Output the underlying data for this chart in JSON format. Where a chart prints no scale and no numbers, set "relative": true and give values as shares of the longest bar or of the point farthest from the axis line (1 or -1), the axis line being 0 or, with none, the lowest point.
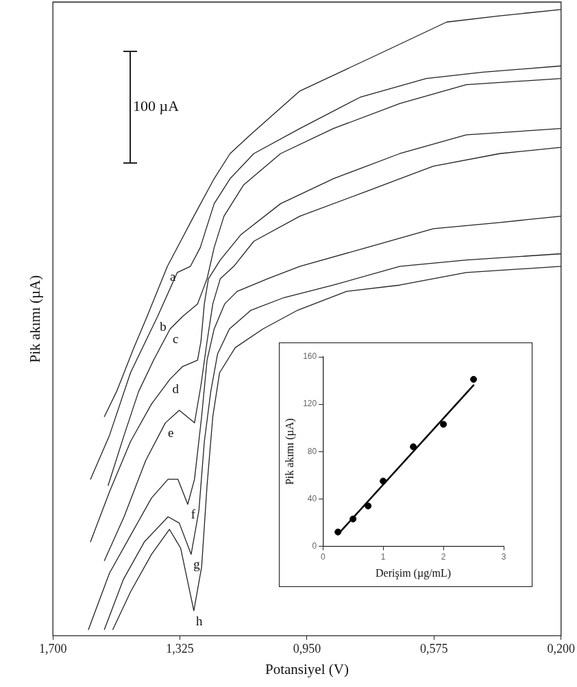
{
  "chart_data": [
    {
      "type": "line",
      "xlabel": "Potansiyel (V)",
      "ylabel": "Pik akımı (µA)",
      "relative": true,
      "tick_labels": "x",
      "xlim": [
        1.7,
        0.2
      ],
      "xticks": [
        {
          "value": 1.7,
          "label": "1,700"
        },
        {
          "value": 1.325,
          "label": "1,325"
        },
        {
          "value": 0.95,
          "label": "0,950"
        },
        {
          "value": 0.575,
          "label": "0,575"
        },
        {
          "value": 0.2,
          "label": "0,200"
        }
      ],
      "series": [
        {
          "name": "a",
          "color": "#222222",
          "x": [
            1.548,
            1.512,
            1.461,
            1.422,
            1.362,
            1.323,
            1.284,
            1.224,
            1.177,
            1.117,
            0.971,
            0.734,
            0.538,
            0.381,
            0.2
          ],
          "values": [
            0.35,
            0.39,
            0.46,
            0.51,
            0.59,
            0.63,
            0.67,
            0.73,
            0.77,
            0.8,
            0.87,
            0.93,
            0.98,
            0.99,
            1
          ]
        },
        {
          "name": "b",
          "color": "#222222",
          "x": [
            1.589,
            1.533,
            1.471,
            1.391,
            1.333,
            1.294,
            1.265,
            1.224,
            1.177,
            1.107,
            0.971,
            0.793,
            0.598,
            0.431,
            0.2
          ],
          "values": [
            0.25,
            0.32,
            0.42,
            0.51,
            0.58,
            0.59,
            0.62,
            0.69,
            0.73,
            0.77,
            0.81,
            0.86,
            0.89,
            0.9,
            0.91
          ]
        },
        {
          "name": "c",
          "color": "#222222",
          "x": [
            1.537,
            1.49,
            1.447,
            1.403,
            1.354,
            1.317,
            1.273,
            1.259,
            1.245,
            1.224,
            1.195,
            1.137,
            1.028,
            0.872,
            0.676,
            0.48,
            0.2
          ],
          "values": [
            0.24,
            0.32,
            0.39,
            0.44,
            0.49,
            0.51,
            0.53,
            0.55,
            0.57,
            0.62,
            0.67,
            0.72,
            0.77,
            0.81,
            0.85,
            0.88,
            0.89
          ]
        },
        {
          "name": "d",
          "color": "#222222",
          "x": [
            1.589,
            1.533,
            1.471,
            1.409,
            1.354,
            1.317,
            1.273,
            1.263,
            1.253,
            1.241,
            1.206,
            1.146,
            1.028,
            0.872,
            0.676,
            0.48,
            0.2
          ],
          "values": [
            0.15,
            0.23,
            0.31,
            0.37,
            0.41,
            0.43,
            0.44,
            0.47,
            0.53,
            0.57,
            0.6,
            0.64,
            0.69,
            0.73,
            0.77,
            0.8,
            0.81
          ]
        },
        {
          "name": "e",
          "color": "#222222",
          "x": [
            1.548,
            1.49,
            1.426,
            1.368,
            1.327,
            1.282,
            1.263,
            1.245,
            1.228,
            1.206,
            1.166,
            1.107,
            0.971,
            0.773,
            0.577,
            0.381,
            0.2
          ],
          "values": [
            0.12,
            0.19,
            0.28,
            0.34,
            0.36,
            0.34,
            0.4,
            0.47,
            0.53,
            0.57,
            0.59,
            0.63,
            0.67,
            0.71,
            0.75,
            0.77,
            0.78
          ]
        },
        {
          "name": "f",
          "color": "#222222",
          "x": [
            1.595,
            1.533,
            1.471,
            1.409,
            1.36,
            1.331,
            1.302,
            1.282,
            1.261,
            1.245,
            1.224,
            1.193,
            1.156,
            1.067,
            0.971,
            0.773,
            0.577,
            0.381,
            0.2
          ],
          "values": [
            0.01,
            0.1,
            0.16,
            0.22,
            0.25,
            0.25,
            0.21,
            0.25,
            0.35,
            0.44,
            0.49,
            0.53,
            0.55,
            0.57,
            0.59,
            0.62,
            0.65,
            0.66,
            0.67
          ]
        },
        {
          "name": "g",
          "color": "#222222",
          "x": [
            1.548,
            1.492,
            1.43,
            1.36,
            1.327,
            1.292,
            1.269,
            1.253,
            1.234,
            1.214,
            1.179,
            1.115,
            1.018,
            0.872,
            0.676,
            0.48,
            0.2
          ],
          "values": [
            0.01,
            0.09,
            0.15,
            0.19,
            0.18,
            0.13,
            0.2,
            0.31,
            0.39,
            0.45,
            0.49,
            0.52,
            0.54,
            0.56,
            0.59,
            0.6,
            0.61
          ]
        },
        {
          "name": "h",
          "color": "#222222",
          "x": [
            1.523,
            1.471,
            1.409,
            1.356,
            1.323,
            1.284,
            1.261,
            1.245,
            1.228,
            1.208,
            1.162,
            1.08,
            0.977,
            0.833,
            0.676,
            0.48,
            0.2
          ],
          "values": [
            0.01,
            0.07,
            0.13,
            0.17,
            0.14,
            0.04,
            0.11,
            0.24,
            0.35,
            0.42,
            0.46,
            0.49,
            0.52,
            0.55,
            0.56,
            0.58,
            0.59
          ]
        }
      ],
      "annotations": [
        "100 µA"
      ]
    },
    {
      "type": "scatter",
      "xlabel": "Derişim (µg/mL)",
      "ylabel": "Pik akımı (µA)",
      "xlim": [
        0,
        3
      ],
      "xticks": [
        0,
        1,
        2,
        3
      ],
      "ylim": [
        0,
        160
      ],
      "yticks": [
        0,
        40,
        80,
        120,
        160
      ],
      "series": [
        {
          "type": "scatter",
          "marker": "circle",
          "color": "#000000",
          "x": [
            0.25,
            0.5,
            0.75,
            1,
            1.5,
            2,
            2.5
          ],
          "values": [
            12,
            23,
            34,
            55,
            84,
            103,
            141
          ]
        },
        {
          "type": "line",
          "color": "#000000",
          "x": [
            0.25,
            2.5
          ],
          "values": [
            10,
            136
          ]
        }
      ]
    }
  ]
}
